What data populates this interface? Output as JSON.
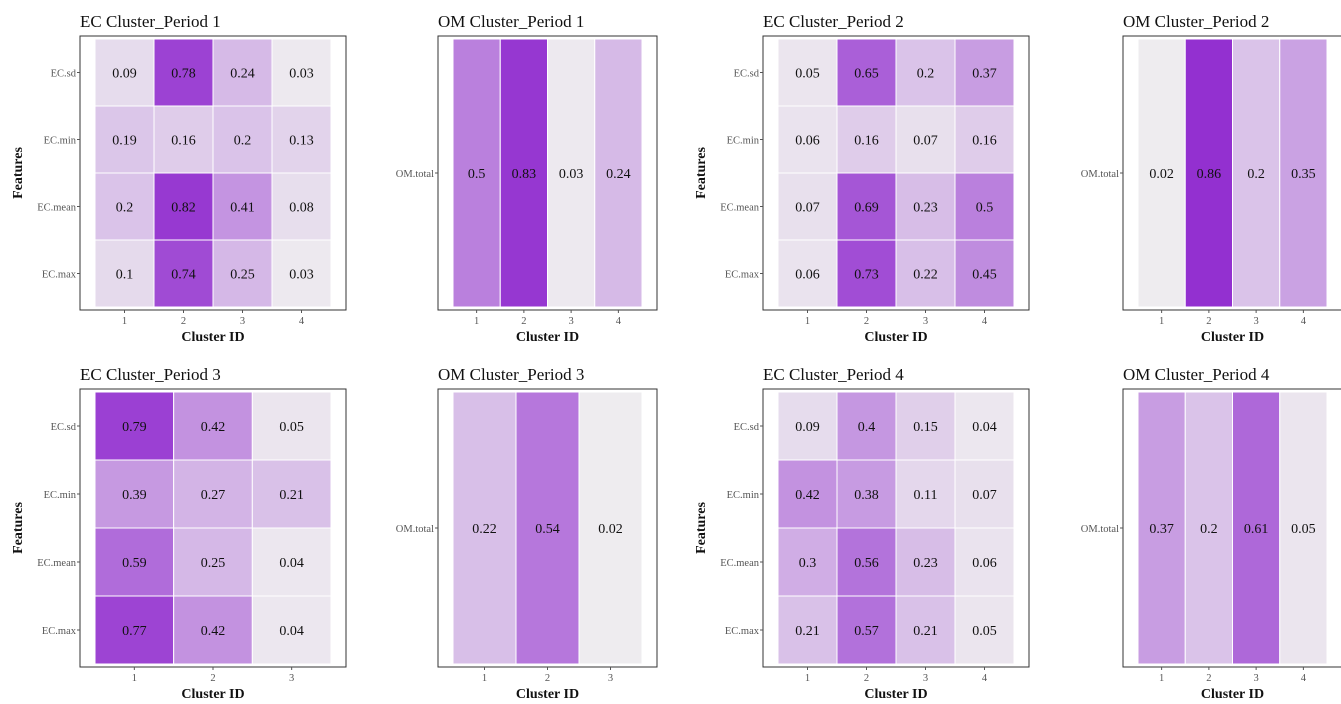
{
  "colors": {
    "low": "#f0f0f0",
    "high": "#9330d0",
    "cell_border": "#ffffff",
    "frame": "#333333"
  },
  "chart_data": [
    {
      "type": "heatmap",
      "title": "EC Cluster_Period 1",
      "xlabel": "Cluster ID",
      "ylabel": "Features",
      "x_categories": [
        "1",
        "2",
        "3",
        "4"
      ],
      "y_categories": [
        "EC.sd",
        "EC.min",
        "EC.mean",
        "EC.max"
      ],
      "values": [
        [
          0.09,
          0.78,
          0.24,
          0.03
        ],
        [
          0.19,
          0.16,
          0.2,
          0.13
        ],
        [
          0.2,
          0.82,
          0.41,
          0.08
        ],
        [
          0.1,
          0.74,
          0.25,
          0.03
        ]
      ],
      "labels": [
        [
          "0.09",
          "0.78",
          "0.24",
          "0.03"
        ],
        [
          "0.19",
          "0.16",
          "0.2",
          "0.13"
        ],
        [
          "0.2",
          "0.82",
          "0.41",
          "0.08"
        ],
        [
          "0.1",
          "0.74",
          "0.25",
          "0.03"
        ]
      ],
      "grid": false
    },
    {
      "type": "heatmap",
      "title": "OM Cluster_Period 1",
      "xlabel": "Cluster ID",
      "ylabel": "",
      "x_categories": [
        "1",
        "2",
        "3",
        "4"
      ],
      "y_categories": [
        "OM.total"
      ],
      "values": [
        [
          0.5,
          0.83,
          0.03,
          0.24
        ]
      ],
      "labels": [
        [
          "0.5",
          "0.83",
          "0.03",
          "0.24"
        ]
      ],
      "grid": false
    },
    {
      "type": "heatmap",
      "title": "EC Cluster_Period 2",
      "xlabel": "Cluster ID",
      "ylabel": "Features",
      "x_categories": [
        "1",
        "2",
        "3",
        "4"
      ],
      "y_categories": [
        "EC.sd",
        "EC.min",
        "EC.mean",
        "EC.max"
      ],
      "values": [
        [
          0.05,
          0.65,
          0.2,
          0.37
        ],
        [
          0.06,
          0.16,
          0.07,
          0.16
        ],
        [
          0.07,
          0.69,
          0.23,
          0.5
        ],
        [
          0.06,
          0.73,
          0.22,
          0.45
        ]
      ],
      "labels": [
        [
          "0.05",
          "0.65",
          "0.2",
          "0.37"
        ],
        [
          "0.06",
          "0.16",
          "0.07",
          "0.16"
        ],
        [
          "0.07",
          "0.69",
          "0.23",
          "0.5"
        ],
        [
          "0.06",
          "0.73",
          "0.22",
          "0.45"
        ]
      ],
      "grid": false
    },
    {
      "type": "heatmap",
      "title": "OM Cluster_Period 2",
      "xlabel": "Cluster ID",
      "ylabel": "",
      "x_categories": [
        "1",
        "2",
        "3",
        "4"
      ],
      "y_categories": [
        "OM.total"
      ],
      "values": [
        [
          0.02,
          0.86,
          0.2,
          0.35
        ]
      ],
      "labels": [
        [
          "0.02",
          "0.86",
          "0.2",
          "0.35"
        ]
      ],
      "grid": false
    },
    {
      "type": "heatmap",
      "title": "EC Cluster_Period 3",
      "xlabel": "Cluster ID",
      "ylabel": "Features",
      "x_categories": [
        "1",
        "2",
        "3"
      ],
      "y_categories": [
        "EC.sd",
        "EC.min",
        "EC.mean",
        "EC.max"
      ],
      "values": [
        [
          0.79,
          0.42,
          0.05
        ],
        [
          0.39,
          0.27,
          0.21
        ],
        [
          0.59,
          0.25,
          0.04
        ],
        [
          0.77,
          0.42,
          0.04
        ]
      ],
      "labels": [
        [
          "0.79",
          "0.42",
          "0.05"
        ],
        [
          "0.39",
          "0.27",
          "0.21"
        ],
        [
          "0.59",
          "0.25",
          "0.04"
        ],
        [
          "0.77",
          "0.42",
          "0.04"
        ]
      ],
      "grid": false
    },
    {
      "type": "heatmap",
      "title": "OM Cluster_Period 3",
      "xlabel": "Cluster ID",
      "ylabel": "",
      "x_categories": [
        "1",
        "2",
        "3"
      ],
      "y_categories": [
        "OM.total"
      ],
      "values": [
        [
          0.22,
          0.54,
          0.02
        ]
      ],
      "labels": [
        [
          "0.22",
          "0.54",
          "0.02"
        ]
      ],
      "grid": false
    },
    {
      "type": "heatmap",
      "title": "EC Cluster_Period 4",
      "xlabel": "Cluster ID",
      "ylabel": "Features",
      "x_categories": [
        "1",
        "2",
        "3",
        "4"
      ],
      "y_categories": [
        "EC.sd",
        "EC.min",
        "EC.mean",
        "EC.max"
      ],
      "values": [
        [
          0.09,
          0.4,
          0.15,
          0.04
        ],
        [
          0.42,
          0.38,
          0.11,
          0.07
        ],
        [
          0.3,
          0.56,
          0.23,
          0.06
        ],
        [
          0.21,
          0.57,
          0.21,
          0.05
        ]
      ],
      "labels": [
        [
          "0.09",
          "0.4",
          "0.15",
          "0.04"
        ],
        [
          "0.42",
          "0.38",
          "0.11",
          "0.07"
        ],
        [
          "0.3",
          "0.56",
          "0.23",
          "0.06"
        ],
        [
          "0.21",
          "0.57",
          "0.21",
          "0.05"
        ]
      ],
      "grid": false
    },
    {
      "type": "heatmap",
      "title": "OM Cluster_Period 4",
      "xlabel": "Cluster ID",
      "ylabel": "",
      "x_categories": [
        "1",
        "2",
        "3",
        "4"
      ],
      "y_categories": [
        "OM.total"
      ],
      "values": [
        [
          0.37,
          0.2,
          0.61,
          0.05
        ]
      ],
      "labels": [
        [
          "0.37",
          "0.2",
          "0.61",
          "0.05"
        ]
      ],
      "grid": false
    }
  ]
}
